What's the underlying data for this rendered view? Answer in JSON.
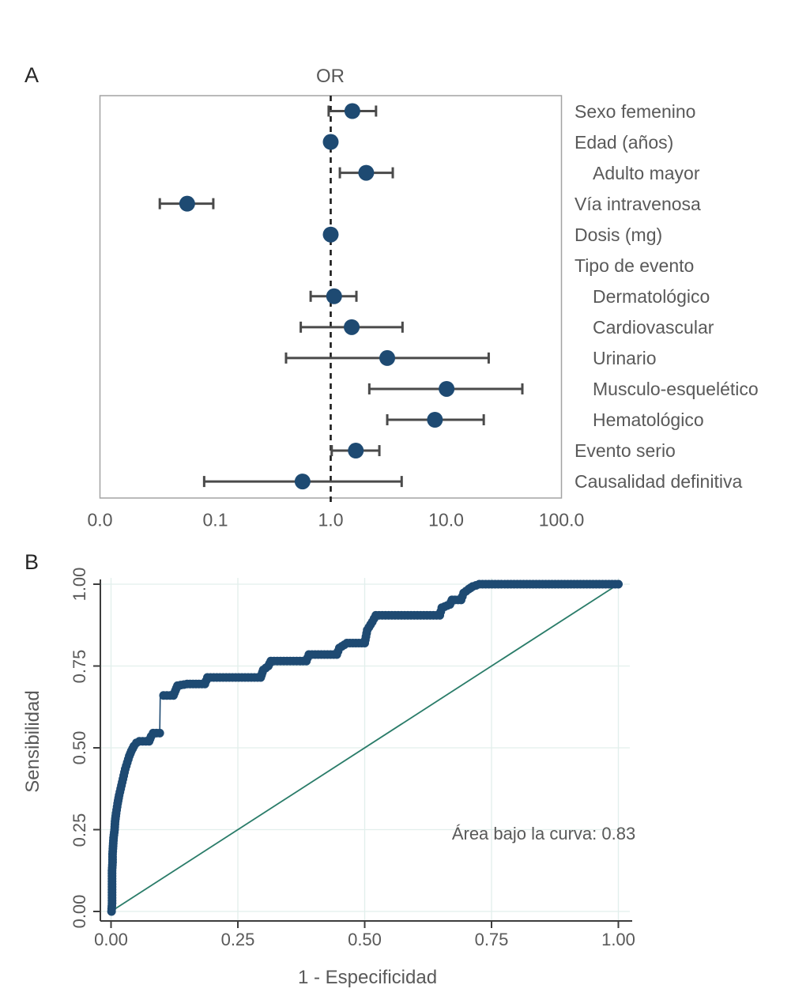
{
  "figure": {
    "panels": [
      {
        "id": "A",
        "label": "A",
        "title": "OR"
      },
      {
        "id": "B",
        "label": "B"
      }
    ]
  },
  "colors": {
    "navy": "#1e4a72",
    "teal": "#2a7c69",
    "error_bar": "#4a4a4a",
    "text_gray": "#595959",
    "axis_dark": "#3d3d3d",
    "frame_gray": "#a3a3a3",
    "grid_mint": "#e2efec",
    "panel_letter": "#262626",
    "dashed_line": "#1a1a1a"
  },
  "chart_data": [
    {
      "type": "scatter",
      "subtype": "forest-plot",
      "panel": "A",
      "title": "OR",
      "x_axis": {
        "scale": "log10",
        "tick_labels": [
          "0.0",
          "0.1",
          "1.0",
          "10.0",
          "100.0"
        ],
        "tick_values": [
          0,
          0.1,
          1,
          10,
          100
        ],
        "reference_line": 1.0
      },
      "rows": [
        {
          "label": "Sexo femenino",
          "indent": false,
          "or": 1.54,
          "ci_low": 0.96,
          "ci_high": 2.47
        },
        {
          "label": "Edad (años)",
          "indent": false,
          "or": 1.0,
          "ci_low": null,
          "ci_high": null
        },
        {
          "label": "Adulto mayor",
          "indent": true,
          "or": 2.03,
          "ci_low": 1.2,
          "ci_high": 3.45
        },
        {
          "label": "Vía intravenosa",
          "indent": false,
          "or": 0.057,
          "ci_low": 0.033,
          "ci_high": 0.096
        },
        {
          "label": "Dosis (mg)",
          "indent": false,
          "or": 1.0,
          "ci_low": null,
          "ci_high": null
        },
        {
          "label": "Tipo de evento",
          "indent": false,
          "or": null,
          "ci_low": null,
          "ci_high": null
        },
        {
          "label": "Dermatológico",
          "indent": true,
          "or": 1.07,
          "ci_low": 0.67,
          "ci_high": 1.67
        },
        {
          "label": "Cardiovascular",
          "indent": true,
          "or": 1.52,
          "ci_low": 0.55,
          "ci_high": 4.19
        },
        {
          "label": "Urinario",
          "indent": true,
          "or": 3.09,
          "ci_low": 0.41,
          "ci_high": 23.4
        },
        {
          "label": "Musculo-esquelético",
          "indent": true,
          "or": 10.1,
          "ci_low": 2.16,
          "ci_high": 45.8
        },
        {
          "label": "Hematológico",
          "indent": true,
          "or": 8.0,
          "ci_low": 3.09,
          "ci_high": 21.2
        },
        {
          "label": "Evento serio",
          "indent": false,
          "or": 1.65,
          "ci_low": 1.02,
          "ci_high": 2.64
        },
        {
          "label": "Causalidad definitiva",
          "indent": false,
          "or": 0.57,
          "ci_low": 0.08,
          "ci_high": 4.12
        }
      ]
    },
    {
      "type": "line",
      "subtype": "roc-curve",
      "panel": "B",
      "xlabel": "1 - Especificidad",
      "ylabel": "Sensibilidad",
      "annotation": "Área bajo la curva: 0.83",
      "auc": 0.83,
      "xlim": [
        0,
        1
      ],
      "ylim": [
        0,
        1
      ],
      "x_ticks": [
        "0.00",
        "0.25",
        "0.50",
        "0.75",
        "1.00"
      ],
      "y_ticks": [
        "0.00",
        "0.25",
        "0.50",
        "0.75",
        "1.00"
      ],
      "grid": true,
      "diagonal_reference": true,
      "legend": null,
      "roc_points": [
        [
          0.001,
          0.0
        ],
        [
          0.002,
          0.025
        ],
        [
          0.002,
          0.05
        ],
        [
          0.002,
          0.075
        ],
        [
          0.002,
          0.1
        ],
        [
          0.002,
          0.125
        ],
        [
          0.003,
          0.15
        ],
        [
          0.003,
          0.175
        ],
        [
          0.004,
          0.2
        ],
        [
          0.005,
          0.225
        ],
        [
          0.007,
          0.25
        ],
        [
          0.008,
          0.275
        ],
        [
          0.01,
          0.3
        ],
        [
          0.013,
          0.33
        ],
        [
          0.016,
          0.355
        ],
        [
          0.019,
          0.375
        ],
        [
          0.022,
          0.395
        ],
        [
          0.025,
          0.415
        ],
        [
          0.028,
          0.435
        ],
        [
          0.032,
          0.455
        ],
        [
          0.036,
          0.475
        ],
        [
          0.04,
          0.49
        ],
        [
          0.045,
          0.505
        ],
        [
          0.05,
          0.515
        ],
        [
          0.056,
          0.52
        ],
        [
          0.075,
          0.52
        ],
        [
          0.079,
          0.535
        ],
        [
          0.083,
          0.545
        ],
        [
          0.096,
          0.545
        ],
        [
          0.097,
          0.66
        ],
        [
          0.123,
          0.66
        ],
        [
          0.127,
          0.675
        ],
        [
          0.131,
          0.69
        ],
        [
          0.15,
          0.695
        ],
        [
          0.185,
          0.695
        ],
        [
          0.19,
          0.715
        ],
        [
          0.295,
          0.715
        ],
        [
          0.3,
          0.738
        ],
        [
          0.31,
          0.75
        ],
        [
          0.315,
          0.765
        ],
        [
          0.385,
          0.765
        ],
        [
          0.39,
          0.785
        ],
        [
          0.445,
          0.785
        ],
        [
          0.45,
          0.805
        ],
        [
          0.465,
          0.82
        ],
        [
          0.5,
          0.82
        ],
        [
          0.505,
          0.86
        ],
        [
          0.515,
          0.885
        ],
        [
          0.522,
          0.905
        ],
        [
          0.648,
          0.905
        ],
        [
          0.652,
          0.928
        ],
        [
          0.668,
          0.938
        ],
        [
          0.672,
          0.952
        ],
        [
          0.69,
          0.952
        ],
        [
          0.695,
          0.973
        ],
        [
          0.705,
          0.985
        ],
        [
          0.713,
          0.993
        ],
        [
          0.726,
          1.0
        ],
        [
          1.0,
          1.0
        ]
      ]
    }
  ]
}
